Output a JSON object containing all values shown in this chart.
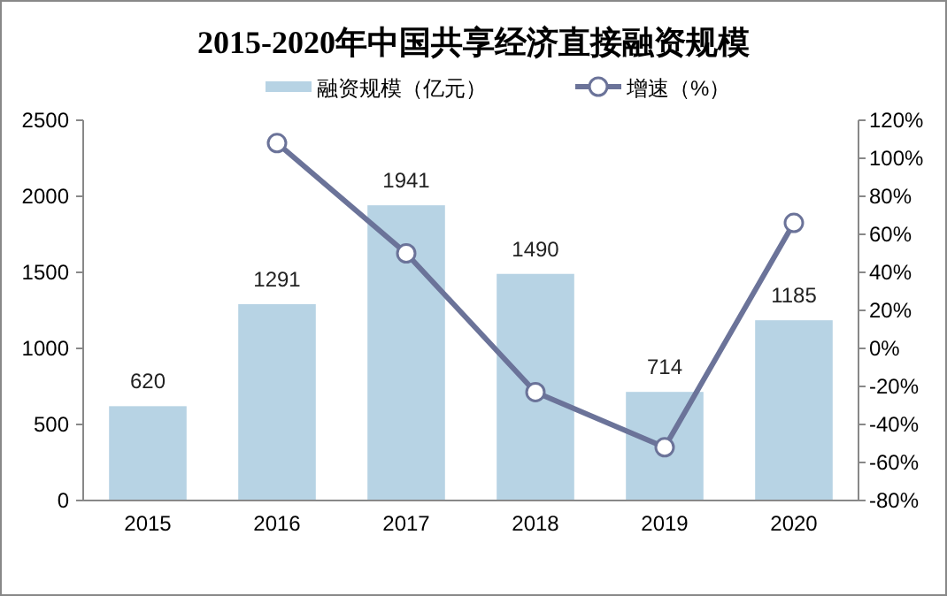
{
  "chart_data": {
    "type": "bar",
    "title": "2015-2020年中国共享经济直接融资规模",
    "categories": [
      "2015",
      "2016",
      "2017",
      "2018",
      "2019",
      "2020"
    ],
    "series": [
      {
        "name": "融资规模（亿元）",
        "color": "#b7d3e4",
        "values": [
          620,
          1291,
          1941,
          1490,
          714,
          1185
        ],
        "value_labels": [
          "620",
          "1291",
          "1941",
          "1490",
          "714",
          "1185"
        ]
      },
      {
        "name": "增速（%）",
        "type": "line",
        "axis": "y2",
        "color": "#6b7399",
        "marker": "circle",
        "values": [
          null,
          108,
          50,
          -23,
          -52,
          66
        ]
      }
    ],
    "ylim": [
      0,
      2500
    ],
    "yticks": [
      0,
      500,
      1000,
      1500,
      2000,
      2500
    ],
    "y2lim": [
      -80,
      120
    ],
    "y2ticks": [
      {
        "value": -80,
        "label": "-80%"
      },
      {
        "value": -60,
        "label": "-60%"
      },
      {
        "value": -40,
        "label": "-40%"
      },
      {
        "value": -20,
        "label": "-20%"
      },
      {
        "value": 0,
        "label": "0%"
      },
      {
        "value": 20,
        "label": "20%"
      },
      {
        "value": 40,
        "label": "40%"
      },
      {
        "value": 60,
        "label": "60%"
      },
      {
        "value": 80,
        "label": "80%"
      },
      {
        "value": 100,
        "label": "100%"
      },
      {
        "value": 120,
        "label": "120%"
      }
    ],
    "grid": false,
    "legend": "top"
  }
}
